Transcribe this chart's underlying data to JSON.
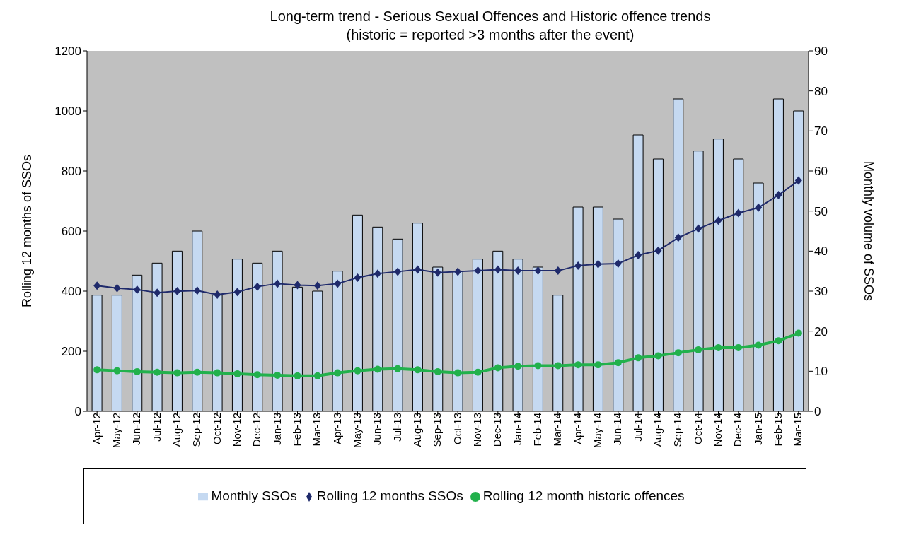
{
  "chart_data": {
    "type": "bar",
    "title": "Long-term trend - Serious Sexual Offences and Historic offence trends",
    "subtitle": "(historic = reported >3 months after the event)",
    "ylabel": "Rolling 12 months of SSOs",
    "y2label": "Monthly volume of SSOs",
    "categories": [
      "Apr-12",
      "May-12",
      "Jun-12",
      "Jul-12",
      "Aug-12",
      "Sep-12",
      "Oct-12",
      "Nov-12",
      "Dec-12",
      "Jan-13",
      "Feb-13",
      "Mar-13",
      "Apr-13",
      "May-13",
      "Jun-13",
      "Jul-13",
      "Aug-13",
      "Sep-13",
      "Oct-13",
      "Nov-13",
      "Dec-13",
      "Jan-14",
      "Feb-14",
      "Mar-14",
      "Apr-14",
      "May-14",
      "Jun-14",
      "Jul-14",
      "Aug-14",
      "Sep-14",
      "Oct-14",
      "Nov-14",
      "Dec-14",
      "Jan-15",
      "Feb-15",
      "Mar-15"
    ],
    "series": [
      {
        "name": "Monthly SSOs",
        "axis": "y2",
        "color": "#c5d9f1",
        "values": [
          29,
          29,
          34,
          37,
          40,
          45,
          29,
          38,
          37,
          40,
          31,
          30,
          35,
          49,
          46,
          43,
          47,
          36,
          35,
          38,
          40,
          38,
          36,
          29,
          51,
          51,
          48,
          69,
          63,
          78,
          65,
          68,
          63,
          57,
          78,
          75
        ]
      },
      {
        "name": "Rolling 12 months SSOs",
        "type": "line",
        "axis": "y",
        "color": "#1f2a6b",
        "marker": "diamond",
        "values": [
          418,
          410,
          405,
          395,
          400,
          402,
          388,
          397,
          415,
          425,
          420,
          418,
          425,
          445,
          458,
          465,
          472,
          462,
          465,
          468,
          472,
          468,
          468,
          468,
          485,
          490,
          492,
          520,
          535,
          578,
          608,
          635,
          660,
          678,
          720,
          768
        ]
      },
      {
        "name": "Rolling 12 month historic offences",
        "type": "line",
        "axis": "y",
        "color": "#22b14c",
        "marker": "circle",
        "values": [
          138,
          135,
          132,
          130,
          128,
          130,
          128,
          125,
          122,
          120,
          118,
          118,
          128,
          135,
          140,
          142,
          138,
          132,
          128,
          130,
          145,
          150,
          152,
          152,
          155,
          155,
          162,
          178,
          185,
          195,
          205,
          212,
          212,
          220,
          235,
          260
        ]
      }
    ],
    "ylim": [
      0,
      1200
    ],
    "yticks": [
      0,
      200,
      400,
      600,
      800,
      1000,
      1200
    ],
    "y2lim": [
      0,
      90
    ],
    "y2ticks": [
      0,
      10,
      20,
      30,
      40,
      50,
      60,
      70,
      80,
      90
    ],
    "legend": "bottom"
  }
}
